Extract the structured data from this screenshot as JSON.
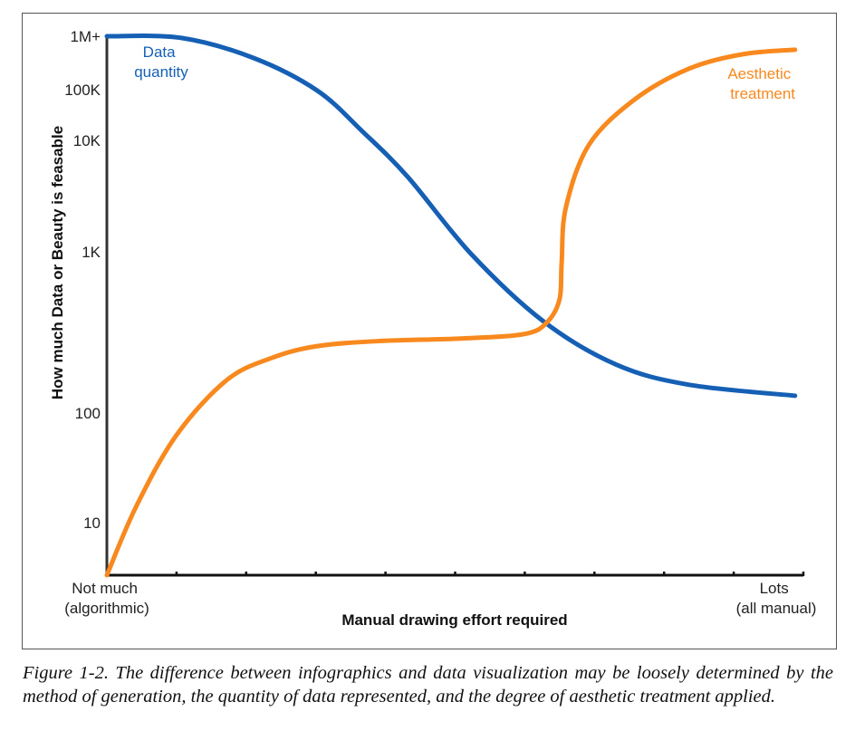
{
  "chart_data": {
    "type": "line",
    "title": "",
    "xlabel": "Manual drawing effort required",
    "ylabel": "How much Data or Beauty is feasable",
    "yscale": "log",
    "x_range": [
      0,
      1
    ],
    "x_tick_count": 11,
    "x_end_labels": {
      "start": [
        "Not much",
        "(algorithmic)"
      ],
      "end": [
        "Lots",
        "(all manual)"
      ]
    },
    "y_ticks": [
      {
        "value": 10,
        "label": "10"
      },
      {
        "value": 100,
        "label": "100"
      },
      {
        "value": 1000,
        "label": "1K"
      },
      {
        "value": 10000,
        "label": "10K"
      },
      {
        "value": 100000,
        "label": "100K"
      },
      {
        "value": 1000000,
        "label": "1M+"
      }
    ],
    "y_base_value": 3,
    "grid": false,
    "series": [
      {
        "name": "Data quantity",
        "label_lines": [
          "Data",
          "quantity"
        ],
        "color": "#1560b5",
        "x": [
          0,
          0.107,
          0.211,
          0.302,
          0.367,
          0.432,
          0.523,
          0.627,
          0.731,
          0.835,
          0.988
        ],
        "y": [
          1000000,
          930000,
          390000,
          96000,
          15000,
          4700,
          970,
          370,
          200,
          150,
          128
        ]
      },
      {
        "name": "Aesthetic treatment",
        "label_lines": [
          "Aesthetic",
          "treatment"
        ],
        "color": "#f7891f",
        "x": [
          0,
          0.042,
          0.1,
          0.172,
          0.237,
          0.302,
          0.393,
          0.51,
          0.601,
          0.633,
          0.65,
          0.653,
          0.659,
          0.692,
          0.757,
          0.835,
          0.913,
          0.988
        ],
        "y": [
          3,
          14,
          63,
          160,
          220,
          260,
          280,
          290,
          310,
          370,
          510,
          860,
          2500,
          9100,
          63000,
          245000,
          460000,
          560000
        ]
      }
    ]
  },
  "caption": "Figure 1-2. The difference between infographics and data visualization may be loosely determined by the method of generation, the quantity of data represented, and the degree of aesthetic treatment applied."
}
